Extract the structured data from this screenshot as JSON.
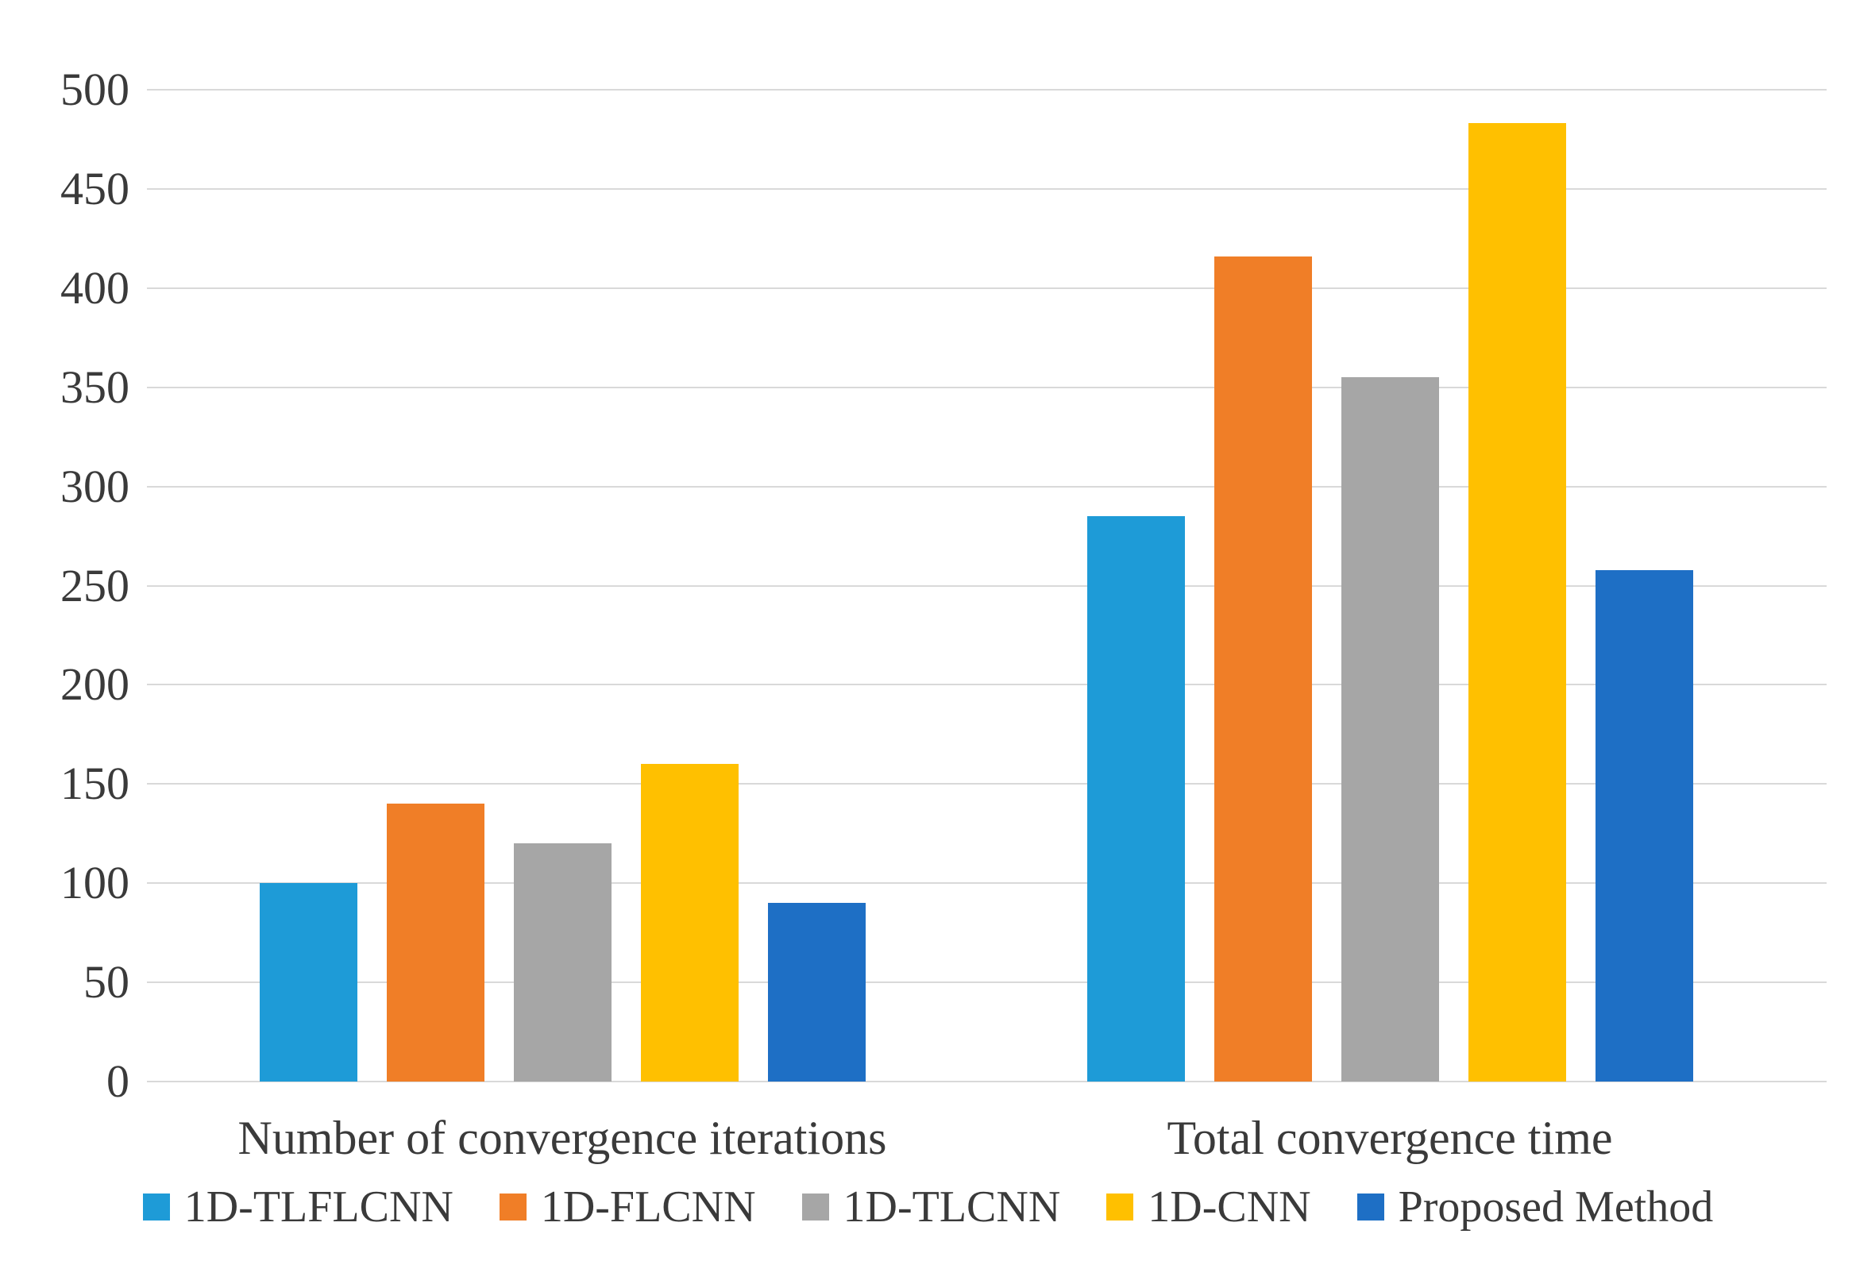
{
  "chart_data": {
    "type": "bar",
    "title": "",
    "categories": [
      "Number of convergence iterations",
      "Total convergence time"
    ],
    "series": [
      {
        "name": "1D-TLFLCNN",
        "color": "#1E9BD7",
        "values": [
          100,
          285
        ]
      },
      {
        "name": "1D-FLCNN",
        "color": "#F07E27",
        "values": [
          140,
          416
        ]
      },
      {
        "name": "1D-TLCNN",
        "color": "#A6A6A6",
        "values": [
          120,
          355
        ]
      },
      {
        "name": "1D-CNN",
        "color": "#FFC000",
        "values": [
          160,
          483
        ]
      },
      {
        "name": "Proposed Method",
        "color": "#1E6FC5",
        "values": [
          90,
          258
        ]
      }
    ],
    "xlabel": "",
    "ylabel": "",
    "ylim": [
      0,
      500
    ],
    "ytick_step": 50,
    "ytick_labels": [
      "0",
      "50",
      "100",
      "150",
      "200",
      "250",
      "300",
      "350",
      "400",
      "450",
      "500"
    ],
    "grid": true,
    "legend_position": "bottom",
    "gridline_color": "#D9D9D9",
    "text_color": "#3A3A3A",
    "background_color": "#FFFFFF"
  }
}
